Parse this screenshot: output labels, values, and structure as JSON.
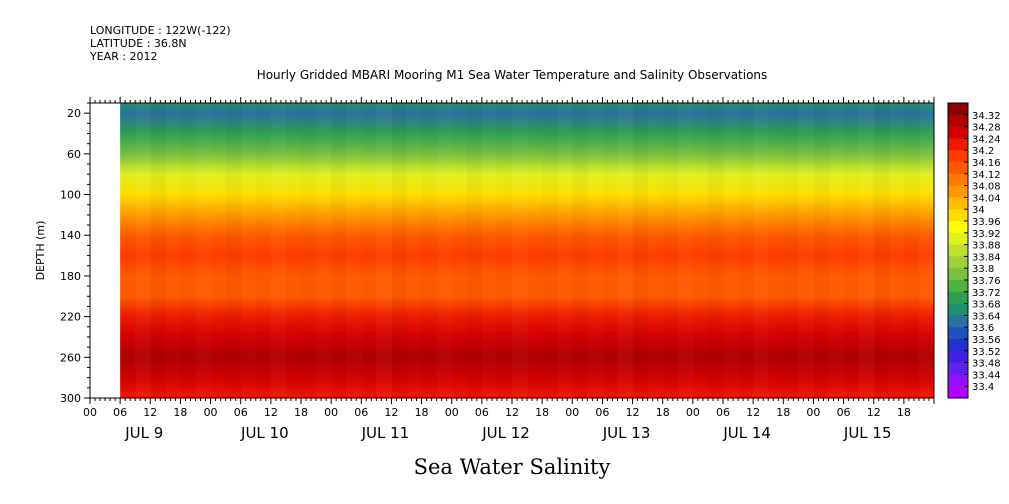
{
  "header": {
    "longitude": "LONGITUDE : 122W(-122)",
    "latitude": "LATITUDE : 36.8N",
    "year": "YEAR : 2012"
  },
  "chart_data": {
    "type": "heatmap",
    "title": "Hourly Gridded MBARI Mooring M1 Sea Water Temperature and Salinity Observations",
    "subtitle": "Sea Water Salinity",
    "xlabel": "",
    "ylabel": "DEPTH (m)",
    "x_hours_range": [
      "JUL 9 00",
      "JUL 15 24"
    ],
    "data_start": "JUL 9 06",
    "ylim": [
      300,
      10
    ],
    "yticks": [
      20,
      60,
      100,
      140,
      180,
      220,
      260,
      300
    ],
    "xtick_hours": [
      "00",
      "06",
      "12",
      "18",
      "00",
      "06",
      "12",
      "18",
      "00",
      "06",
      "12",
      "18",
      "00",
      "06",
      "12",
      "18",
      "00",
      "06",
      "12",
      "18",
      "00",
      "06",
      "12",
      "18",
      "00",
      "06",
      "12",
      "18"
    ],
    "xtick_days": [
      "JUL 9",
      "JUL 10",
      "JUL 11",
      "JUL 12",
      "JUL 13",
      "JUL 14",
      "JUL 15"
    ],
    "colorbar_levels": [
      34.32,
      34.28,
      34.24,
      34.2,
      34.16,
      34.12,
      34.08,
      34.04,
      34,
      33.96,
      33.92,
      33.88,
      33.84,
      33.8,
      33.76,
      33.72,
      33.68,
      33.64,
      33.6,
      33.56,
      33.52,
      33.48,
      33.44,
      33.4
    ],
    "colorbar_colors": [
      "#8b0000",
      "#b00000",
      "#d20000",
      "#ee1a00",
      "#ff3c00",
      "#ff5a00",
      "#ff7a00",
      "#ff9a00",
      "#ffbc00",
      "#ffdd00",
      "#ffff00",
      "#e0f020",
      "#c0e030",
      "#9fd03a",
      "#78c040",
      "#50b040",
      "#30a050",
      "#209070",
      "#2a70a0",
      "#2050c0",
      "#2530d0",
      "#4020e0",
      "#6020f0",
      "#9010ff",
      "#b000ff"
    ],
    "depth_profile": [
      {
        "depth": 10,
        "salinity": 33.66
      },
      {
        "depth": 20,
        "salinity": 33.64
      },
      {
        "depth": 40,
        "salinity": 33.7
      },
      {
        "depth": 60,
        "salinity": 33.8
      },
      {
        "depth": 80,
        "salinity": 33.88
      },
      {
        "depth": 100,
        "salinity": 33.96
      },
      {
        "depth": 120,
        "salinity": 34.04
      },
      {
        "depth": 140,
        "salinity": 34.12
      },
      {
        "depth": 160,
        "salinity": 34.16
      },
      {
        "depth": 180,
        "salinity": 34.14
      },
      {
        "depth": 200,
        "salinity": 34.12
      },
      {
        "depth": 220,
        "salinity": 34.2
      },
      {
        "depth": 240,
        "salinity": 34.24
      },
      {
        "depth": 260,
        "salinity": 34.28
      },
      {
        "depth": 280,
        "salinity": 34.24
      },
      {
        "depth": 300,
        "salinity": 34.2
      }
    ]
  }
}
